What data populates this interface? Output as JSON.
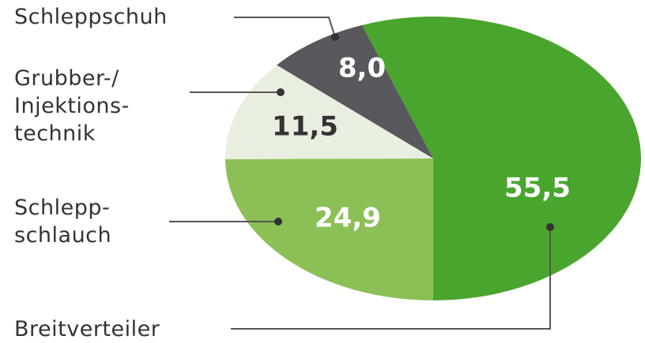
{
  "chart_data": {
    "type": "pie",
    "categories": [
      "Breitverteiler",
      "Schlepp-\nschlauch",
      "Grubber-/\nInjektions-\ntechnik",
      "Schleppschuh"
    ],
    "values": [
      55.5,
      24.9,
      11.5,
      8.0
    ],
    "value_labels": [
      "55,5",
      "24,9",
      "11,5",
      "8,0"
    ],
    "colors": [
      "#4aa52e",
      "#8cc057",
      "#e9efe0",
      "#58585c"
    ]
  }
}
